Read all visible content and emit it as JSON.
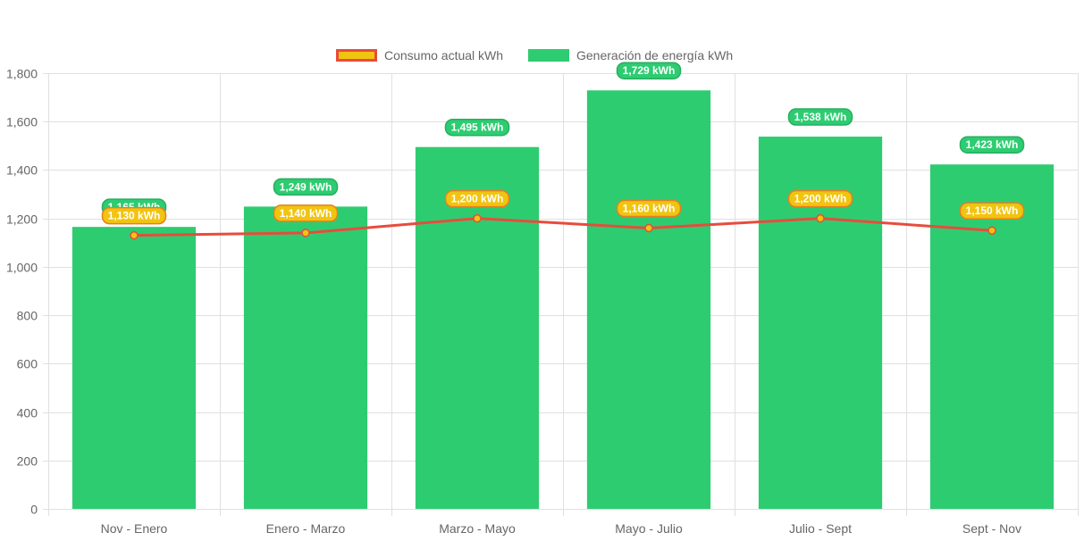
{
  "chart_data": {
    "type": "bar",
    "categories": [
      "Nov - Enero",
      "Enero - Marzo",
      "Marzo - Mayo",
      "Mayo - Julio",
      "Julio - Sept",
      "Sept - Nov"
    ],
    "series": [
      {
        "name": "Consumo actual kWh",
        "type": "line",
        "values": [
          1130,
          1140,
          1200,
          1160,
          1200,
          1150
        ],
        "labels": [
          "1,130 kWh",
          "1,140 kWh",
          "1,200 kWh",
          "1,160 kWh",
          "1,200 kWh",
          "1,150 kWh"
        ],
        "color": "#e74c3c",
        "fill_color": "#f1c40f"
      },
      {
        "name": "Generación de energía kWh",
        "type": "bar",
        "values": [
          1165,
          1249,
          1495,
          1729,
          1538,
          1423
        ],
        "labels": [
          "1,165 kWh",
          "1,249 kWh",
          "1,495 kWh",
          "1,729 kWh",
          "1,538 kWh",
          "1,423 kWh"
        ],
        "color": "#2ecc71"
      }
    ],
    "yticks": [
      "0",
      "200",
      "400",
      "600",
      "800",
      "1,000",
      "1,200",
      "1,400",
      "1,600",
      "1,800"
    ],
    "ylim": [
      0,
      1800
    ],
    "grid": true,
    "legend_position": "top"
  }
}
